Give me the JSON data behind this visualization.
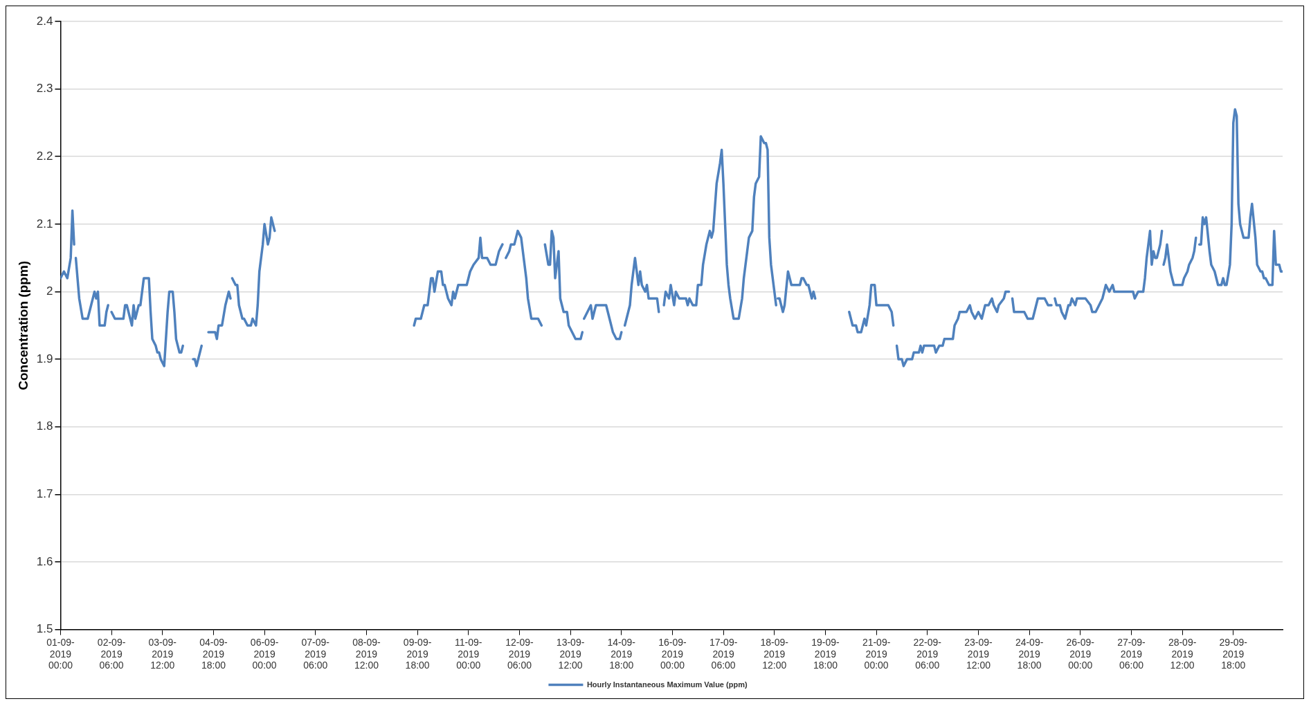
{
  "chart_data": {
    "type": "line",
    "ylabel": "Concentration (ppm)",
    "ylim": [
      1.5,
      2.4
    ],
    "yticks": [
      1.5,
      1.6,
      1.7,
      1.8,
      1.9,
      2,
      2.1,
      2.2,
      2.3,
      2.4
    ],
    "xlim": [
      "2019-09-01T00:00",
      "2019-09-30T23:00"
    ],
    "xticks": [
      {
        "value": "2019-09-01T00:00",
        "label": "01-09-2019 00:00"
      },
      {
        "value": "2019-09-02T06:00",
        "label": "02-09-2019 06:00"
      },
      {
        "value": "2019-09-03T12:00",
        "label": "03-09-2019 12:00"
      },
      {
        "value": "2019-09-04T18:00",
        "label": "04-09-2019 18:00"
      },
      {
        "value": "2019-09-06T00:00",
        "label": "06-09-2019 00:00"
      },
      {
        "value": "2019-09-07T06:00",
        "label": "07-09-2019 06:00"
      },
      {
        "value": "2019-09-08T12:00",
        "label": "08-09-2019 12:00"
      },
      {
        "value": "2019-09-09T18:00",
        "label": "09-09-2019 18:00"
      },
      {
        "value": "2019-09-11T00:00",
        "label": "11-09-2019 00:00"
      },
      {
        "value": "2019-09-12T06:00",
        "label": "12-09-2019 06:00"
      },
      {
        "value": "2019-09-13T12:00",
        "label": "13-09-2019 12:00"
      },
      {
        "value": "2019-09-14T18:00",
        "label": "14-09-2019 18:00"
      },
      {
        "value": "2019-09-16T00:00",
        "label": "16-09-2019 00:00"
      },
      {
        "value": "2019-09-17T06:00",
        "label": "17-09-2019 06:00"
      },
      {
        "value": "2019-09-18T12:00",
        "label": "18-09-2019 12:00"
      },
      {
        "value": "2019-09-19T18:00",
        "label": "19-09-2019 18:00"
      },
      {
        "value": "2019-09-21T00:00",
        "label": "21-09-2019 00:00"
      },
      {
        "value": "2019-09-22T06:00",
        "label": "22-09-2019 06:00"
      },
      {
        "value": "2019-09-23T12:00",
        "label": "23-09-2019 12:00"
      },
      {
        "value": "2019-09-24T18:00",
        "label": "24-09-2019 18:00"
      },
      {
        "value": "2019-09-26T00:00",
        "label": "26-09-2019 00:00"
      },
      {
        "value": "2019-09-27T06:00",
        "label": "27-09-2019 06:00"
      },
      {
        "value": "2019-09-28T12:00",
        "label": "28-09-2019 12:00"
      },
      {
        "value": "2019-09-29T18:00",
        "label": "29-09-2019 18:00"
      }
    ],
    "grid": "y",
    "legend": "bottom",
    "marker": "none",
    "line_style": "solid",
    "series": [
      {
        "name": "Hourly Instantaneous Maximum Value (ppm)",
        "color": "#4f81bd",
        "x": [
          "2019-09-01T00:00",
          "2019-09-01T02:00",
          "2019-09-01T04:00",
          "2019-09-01T06:00",
          "2019-09-01T07:00",
          "2019-09-01T08:00",
          "2019-09-01T08:30",
          "2019-09-01T09:00",
          "2019-09-01T11:00",
          "2019-09-01T13:00",
          "2019-09-01T16:00",
          "2019-09-01T18:00",
          "2019-09-01T20:00",
          "2019-09-01T21:00",
          "2019-09-01T22:00",
          "2019-09-01T23:00",
          "2019-09-02T02:00",
          "2019-09-02T03:00",
          "2019-09-02T04:00",
          "2019-09-02T05:00",
          "2019-09-02T06:00",
          "2019-09-02T08:00",
          "2019-09-02T13:00",
          "2019-09-02T14:00",
          "2019-09-02T15:00",
          "2019-09-02T17:00",
          "2019-09-02T18:00",
          "2019-09-02T19:00",
          "2019-09-02T20:00",
          "2019-09-02T22:00",
          "2019-09-02T23:00",
          "2019-09-03T01:00",
          "2019-09-03T04:00",
          "2019-09-03T05:00",
          "2019-09-03T06:00",
          "2019-09-03T08:00",
          "2019-09-03T09:00",
          "2019-09-03T10:00",
          "2019-09-03T11:00",
          "2019-09-03T13:00",
          "2019-09-03T15:00",
          "2019-09-03T16:00",
          "2019-09-03T18:00",
          "2019-09-03T19:00",
          "2019-09-03T20:00",
          "2019-09-03T22:00",
          "2019-09-03T23:00",
          "2019-09-04T00:00",
          "2019-09-04T03:00",
          "2019-09-04T06:00",
          "2019-09-04T07:00",
          "2019-09-04T08:00",
          "2019-09-04T11:00",
          "2019-09-04T13:00",
          "2019-09-04T15:00",
          "2019-09-04T19:00",
          "2019-09-04T20:00",
          "2019-09-04T21:00",
          "2019-09-04T23:00",
          "2019-09-05T01:00",
          "2019-09-05T03:00",
          "2019-09-05T04:00",
          "2019-09-05T04:30",
          "2019-09-05T05:00",
          "2019-09-05T07:00",
          "2019-09-05T08:00",
          "2019-09-05T09:00",
          "2019-09-05T11:00",
          "2019-09-05T12:00",
          "2019-09-05T14:00",
          "2019-09-05T16:00",
          "2019-09-05T17:00",
          "2019-09-05T19:00",
          "2019-09-05T20:00",
          "2019-09-05T21:00",
          "2019-09-05T23:00",
          "2019-09-06T00:00",
          "2019-09-06T02:00",
          "2019-09-06T03:00",
          "2019-09-06T04:00",
          "2019-09-06T06:00",
          "2019-09-07T16:00",
          "2019-09-09T16:00",
          "2019-09-09T17:00",
          "2019-09-09T20:00",
          "2019-09-09T22:00",
          "2019-09-10T00:00",
          "2019-09-10T02:00",
          "2019-09-10T03:00",
          "2019-09-10T04:00",
          "2019-09-10T06:00",
          "2019-09-10T08:00",
          "2019-09-10T09:00",
          "2019-09-10T10:00",
          "2019-09-10T12:00",
          "2019-09-10T14:00",
          "2019-09-10T15:00",
          "2019-09-10T16:00",
          "2019-09-10T18:00",
          "2019-09-10T23:00",
          "2019-09-11T01:00",
          "2019-09-11T03:00",
          "2019-09-11T06:00",
          "2019-09-11T07:00",
          "2019-09-11T08:00",
          "2019-09-11T11:00",
          "2019-09-11T13:00",
          "2019-09-11T16:00",
          "2019-09-11T18:00",
          "2019-09-11T20:00",
          "2019-09-11T21:00",
          "2019-09-11T22:00",
          "2019-09-12T00:00",
          "2019-09-12T01:00",
          "2019-09-12T03:00",
          "2019-09-12T05:00",
          "2019-09-12T07:00",
          "2019-09-12T08:00",
          "2019-09-12T10:00",
          "2019-09-12T11:00",
          "2019-09-12T13:00",
          "2019-09-12T17:00",
          "2019-09-12T19:00",
          "2019-09-12T20:00",
          "2019-09-12T21:00",
          "2019-09-12T23:00",
          "2019-09-13T00:00",
          "2019-09-13T01:00",
          "2019-09-13T02:00",
          "2019-09-13T03:00",
          "2019-09-13T05:00",
          "2019-09-13T06:00",
          "2019-09-13T08:00",
          "2019-09-13T10:00",
          "2019-09-13T11:00",
          "2019-09-13T13:00",
          "2019-09-13T15:00",
          "2019-09-13T18:00",
          "2019-09-13T19:00",
          "2019-09-13T19:30",
          "2019-09-13T20:00",
          "2019-09-13T22:00",
          "2019-09-14T00:00",
          "2019-09-14T01:00",
          "2019-09-14T03:00",
          "2019-09-14T06:00",
          "2019-09-14T09:00",
          "2019-09-14T11:00",
          "2019-09-14T12:00",
          "2019-09-14T13:00",
          "2019-09-14T15:00",
          "2019-09-14T17:00",
          "2019-09-14T18:00",
          "2019-09-14T19:00",
          "2019-09-14T20:00",
          "2019-09-14T21:00",
          "2019-09-14T23:00",
          "2019-09-15T00:00",
          "2019-09-15T02:00",
          "2019-09-15T03:00",
          "2019-09-15T04:00",
          "2019-09-15T05:00",
          "2019-09-15T06:00",
          "2019-09-15T08:00",
          "2019-09-15T09:00",
          "2019-09-15T10:00",
          "2019-09-15T13:00",
          "2019-09-15T15:00",
          "2019-09-15T16:00",
          "2019-09-15T17:00",
          "2019-09-15T19:00",
          "2019-09-15T20:00",
          "2019-09-15T22:00",
          "2019-09-15T23:00",
          "2019-09-16T01:00",
          "2019-09-16T02:00",
          "2019-09-16T04:00",
          "2019-09-16T08:00",
          "2019-09-16T09:00",
          "2019-09-16T10:00",
          "2019-09-16T12:00",
          "2019-09-16T14:00",
          "2019-09-16T15:00",
          "2019-09-16T17:00",
          "2019-09-16T18:00",
          "2019-09-16T20:00",
          "2019-09-16T22:00",
          "2019-09-16T23:00",
          "2019-09-17T00:00",
          "2019-09-17T02:00",
          "2019-09-17T04:00",
          "2019-09-17T05:00",
          "2019-09-17T06:00",
          "2019-09-17T08:00",
          "2019-09-17T09:00",
          "2019-09-17T10:00",
          "2019-09-17T12:00",
          "2019-09-17T13:00",
          "2019-09-17T15:00",
          "2019-09-17T17:00",
          "2019-09-17T18:00",
          "2019-09-17T20:00",
          "2019-09-17T21:00",
          "2019-09-17T23:00",
          "2019-09-18T00:00",
          "2019-09-18T01:00",
          "2019-09-18T03:00",
          "2019-09-18T04:00",
          "2019-09-18T06:00",
          "2019-09-18T07:00",
          "2019-09-18T08:00",
          "2019-09-18T09:00",
          "2019-09-18T10:00",
          "2019-09-18T12:00",
          "2019-09-18T13:00",
          "2019-09-18T13:30",
          "2019-09-18T14:00",
          "2019-09-18T15:00",
          "2019-09-18T17:00",
          "2019-09-18T18:00",
          "2019-09-18T20:00",
          "2019-09-18T22:00",
          "2019-09-19T01:00",
          "2019-09-19T03:00",
          "2019-09-19T04:00",
          "2019-09-19T05:00",
          "2019-09-19T07:00",
          "2019-09-19T08:00",
          "2019-09-19T10:00",
          "2019-09-19T11:00",
          "2019-09-19T12:00",
          "2019-09-19T18:00",
          "2019-09-20T08:00",
          "2019-09-20T10:00",
          "2019-09-20T12:00",
          "2019-09-20T13:00",
          "2019-09-20T15:00",
          "2019-09-20T17:00",
          "2019-09-20T18:00",
          "2019-09-20T20:00",
          "2019-09-20T21:00",
          "2019-09-20T23:00",
          "2019-09-21T00:00",
          "2019-09-21T02:00",
          "2019-09-21T07:00",
          "2019-09-21T09:00",
          "2019-09-21T10:00",
          "2019-09-21T11:00",
          "2019-09-21T12:00",
          "2019-09-21T13:00",
          "2019-09-21T15:00",
          "2019-09-21T16:00",
          "2019-09-21T18:00",
          "2019-09-21T21:00",
          "2019-09-21T22:00",
          "2019-09-22T01:00",
          "2019-09-22T02:00",
          "2019-09-22T03:00",
          "2019-09-22T04:00",
          "2019-09-22T07:00",
          "2019-09-22T10:00",
          "2019-09-22T11:00",
          "2019-09-22T13:00",
          "2019-09-22T15:00",
          "2019-09-22T16:00",
          "2019-09-22T19:00",
          "2019-09-22T21:00",
          "2019-09-22T22:00",
          "2019-09-23T00:00",
          "2019-09-23T01:00",
          "2019-09-23T05:00",
          "2019-09-23T07:00",
          "2019-09-23T08:00",
          "2019-09-23T10:00",
          "2019-09-23T12:00",
          "2019-09-23T14:00",
          "2019-09-23T16:00",
          "2019-09-23T18:00",
          "2019-09-23T20:00",
          "2019-09-23T21:00",
          "2019-09-23T23:00",
          "2019-09-24T00:00",
          "2019-09-24T03:00",
          "2019-09-24T04:00",
          "2019-09-24T06:00",
          "2019-09-24T07:00",
          "2019-09-24T08:00",
          "2019-09-24T09:00",
          "2019-09-24T12:00",
          "2019-09-24T15:00",
          "2019-09-24T17:00",
          "2019-09-24T20:00",
          "2019-09-24T22:00",
          "2019-09-24T23:00",
          "2019-09-25T03:00",
          "2019-09-25T05:00",
          "2019-09-25T07:00",
          "2019-09-25T08:00",
          "2019-09-25T09:00",
          "2019-09-25T10:00",
          "2019-09-25T12:00",
          "2019-09-25T13:00",
          "2019-09-25T15:00",
          "2019-09-25T17:00",
          "2019-09-25T18:00",
          "2019-09-25T19:00",
          "2019-09-25T21:00",
          "2019-09-25T22:00",
          "2019-09-26T01:00",
          "2019-09-26T03:00",
          "2019-09-26T06:00",
          "2019-09-26T07:00",
          "2019-09-26T09:00",
          "2019-09-26T11:00",
          "2019-09-26T13:00",
          "2019-09-26T15:00",
          "2019-09-26T17:00",
          "2019-09-26T19:00",
          "2019-09-26T20:00",
          "2019-09-27T01:00",
          "2019-09-27T04:00",
          "2019-09-27T07:00",
          "2019-09-27T08:00",
          "2019-09-27T10:00",
          "2019-09-27T13:00",
          "2019-09-27T14:00",
          "2019-09-27T15:00",
          "2019-09-27T17:00",
          "2019-09-27T18:00",
          "2019-09-27T19:00",
          "2019-09-27T20:00",
          "2019-09-27T21:00",
          "2019-09-27T23:00",
          "2019-09-28T00:00",
          "2019-09-28T00:30",
          "2019-09-28T01:00",
          "2019-09-28T02:00",
          "2019-09-28T03:00",
          "2019-09-28T05:00",
          "2019-09-28T07:00",
          "2019-09-28T09:00",
          "2019-09-28T12:00",
          "2019-09-28T13:00",
          "2019-09-28T15:00",
          "2019-09-28T16:00",
          "2019-09-28T18:00",
          "2019-09-28T19:00",
          "2019-09-28T20:00",
          "2019-09-28T21:00",
          "2019-09-28T22:00",
          "2019-09-28T23:00",
          "2019-09-29T00:00",
          "2019-09-29T01:00",
          "2019-09-29T02:00",
          "2019-09-29T04:00",
          "2019-09-29T05:00",
          "2019-09-29T07:00",
          "2019-09-29T08:00",
          "2019-09-29T09:00",
          "2019-09-29T11:00",
          "2019-09-29T12:00",
          "2019-09-29T13:00",
          "2019-09-29T14:00",
          "2019-09-29T16:00",
          "2019-09-29T17:00",
          "2019-09-29T18:00",
          "2019-09-29T19:00",
          "2019-09-29T20:00",
          "2019-09-29T21:00",
          "2019-09-29T22:00",
          "2019-09-30T00:00",
          "2019-09-30T03:00",
          "2019-09-30T04:00",
          "2019-09-30T05:00",
          "2019-09-30T07:00",
          "2019-09-30T08:00",
          "2019-09-30T10:00",
          "2019-09-30T11:00",
          "2019-09-30T12:00",
          "2019-09-30T13:00",
          "2019-09-30T15:00",
          "2019-09-30T17:00",
          "2019-09-30T18:00",
          "2019-09-30T19:00",
          "2019-09-30T21:00",
          "2019-09-30T22:00",
          "2019-09-30T23:00"
        ],
        "values": [
          2.02,
          2.03,
          2.02,
          2.05,
          2.12,
          2.07,
          null,
          2.05,
          1.99,
          1.96,
          1.96,
          1.98,
          2.0,
          1.99,
          2.0,
          1.95,
          1.95,
          1.97,
          1.98,
          null,
          1.97,
          1.96,
          1.96,
          1.98,
          1.98,
          1.96,
          1.95,
          1.98,
          1.96,
          1.98,
          1.98,
          2.02,
          2.02,
          1.97,
          1.93,
          1.92,
          1.91,
          1.91,
          1.9,
          1.89,
          1.97,
          2.0,
          2.0,
          1.97,
          1.93,
          1.91,
          1.91,
          1.92,
          null,
          1.9,
          1.9,
          1.89,
          1.92,
          null,
          1.94,
          1.94,
          1.93,
          1.95,
          1.95,
          1.98,
          2.0,
          1.99,
          null,
          2.02,
          2.01,
          2.01,
          1.98,
          1.96,
          1.96,
          1.95,
          1.95,
          1.96,
          1.95,
          1.98,
          2.03,
          2.07,
          2.1,
          2.07,
          2.08,
          2.11,
          2.09,
          null,
          1.95,
          1.96,
          1.96,
          1.98,
          1.98,
          2.02,
          2.02,
          2.0,
          2.03,
          2.03,
          2.01,
          2.01,
          1.99,
          1.98,
          2.0,
          1.99,
          2.01,
          2.01,
          2.03,
          2.04,
          2.05,
          2.08,
          2.05,
          2.05,
          2.04,
          2.04,
          2.06,
          2.07,
          null,
          2.05,
          2.06,
          2.07,
          2.07,
          2.09,
          2.08,
          2.06,
          2.02,
          1.99,
          1.96,
          1.96,
          1.95,
          null,
          2.07,
          2.04,
          2.04,
          2.09,
          2.08,
          2.02,
          2.06,
          1.99,
          1.97,
          1.97,
          1.95,
          1.94,
          1.93,
          1.93,
          1.94,
          null,
          1.96,
          1.97,
          1.98,
          1.96,
          1.98,
          1.98,
          1.98,
          1.96,
          1.95,
          1.94,
          1.93,
          1.93,
          1.94,
          null,
          1.95,
          1.96,
          1.98,
          2.01,
          2.05,
          2.03,
          2.01,
          2.03,
          2.01,
          2.0,
          2.01,
          1.99,
          1.99,
          1.99,
          1.97,
          null,
          1.98,
          2.0,
          1.99,
          2.01,
          1.98,
          2.0,
          1.99,
          1.99,
          1.98,
          1.99,
          1.98,
          1.98,
          2.01,
          2.01,
          2.04,
          2.07,
          2.09,
          2.08,
          2.09,
          2.16,
          2.19,
          2.21,
          2.16,
          2.04,
          2.01,
          1.99,
          1.96,
          1.96,
          1.96,
          1.99,
          2.02,
          2.06,
          2.08,
          2.09,
          2.14,
          2.16,
          2.17,
          2.23,
          2.22,
          2.22,
          2.21,
          2.08,
          2.04,
          2.0,
          1.98,
          null,
          1.99,
          1.99,
          1.97,
          1.98,
          2.03,
          2.01,
          2.01,
          2.01,
          2.02,
          2.02,
          2.01,
          2.01,
          1.99,
          2.0,
          1.99,
          null,
          1.97,
          1.95,
          1.95,
          1.94,
          1.94,
          1.96,
          1.95,
          1.98,
          2.01,
          2.01,
          1.98,
          1.98,
          1.98,
          1.97,
          1.95,
          null,
          1.92,
          1.9,
          1.9,
          1.89,
          1.9,
          1.9,
          1.91,
          1.91,
          1.92,
          1.91,
          1.92,
          1.92,
          1.92,
          1.91,
          1.92,
          1.92,
          1.93,
          1.93,
          1.93,
          1.95,
          1.96,
          1.97,
          1.97,
          1.98,
          1.97,
          1.96,
          1.97,
          1.96,
          1.98,
          1.98,
          1.99,
          1.98,
          1.97,
          1.98,
          1.99,
          2.0,
          2.0,
          null,
          1.99,
          1.97,
          1.97,
          1.97,
          1.96,
          1.96,
          1.98,
          1.99,
          1.99,
          1.98,
          1.98,
          null,
          1.99,
          1.98,
          1.98,
          1.97,
          1.96,
          1.98,
          1.98,
          1.99,
          1.98,
          1.99,
          1.99,
          1.99,
          1.98,
          1.97,
          1.97,
          1.98,
          1.99,
          2.01,
          2.0,
          2.01,
          2.0,
          2.0,
          2.0,
          2.0,
          1.99,
          2.0,
          2.0,
          2.02,
          2.05,
          2.09,
          2.04,
          2.06,
          2.05,
          2.05,
          2.07,
          2.09,
          null,
          2.04,
          2.05,
          2.07,
          2.03,
          2.01,
          2.01,
          2.01,
          2.02,
          2.03,
          2.04,
          2.05,
          2.06,
          2.08,
          null,
          2.07,
          2.07,
          2.11,
          2.1,
          2.11,
          2.06,
          2.04,
          2.03,
          2.02,
          2.01,
          2.01,
          2.02,
          2.01,
          2.01,
          2.04,
          2.1,
          2.25,
          2.27,
          2.26,
          2.13,
          2.1,
          2.08,
          2.08,
          2.11,
          2.13,
          2.08,
          2.04,
          2.03,
          2.03,
          2.02,
          2.02,
          2.01,
          2.01,
          2.09,
          2.04,
          2.04,
          2.03,
          2.03
        ]
      }
    ]
  }
}
